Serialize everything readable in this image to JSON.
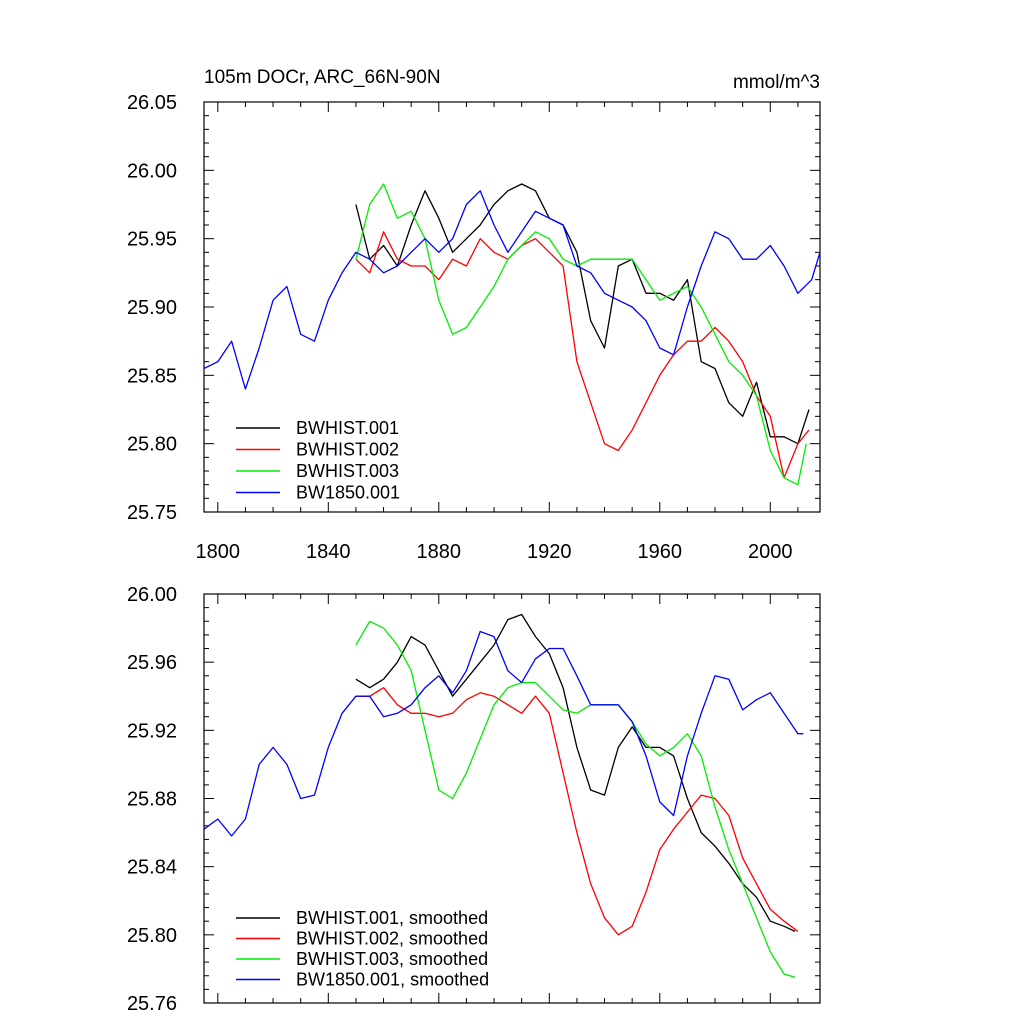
{
  "chart_data": [
    {
      "type": "line",
      "title": "105m DOCr, ARC_66N-90N",
      "units": "mmol/m^3",
      "xlabel": "",
      "ylabel": "",
      "xlim": [
        1795,
        2018
      ],
      "ylim": [
        25.75,
        26.05
      ],
      "x_ticks": [
        1800,
        1840,
        1880,
        1920,
        1960,
        2000
      ],
      "x_tick_labels": [
        "1800",
        "1840",
        "1880",
        "1920",
        "1960",
        "2000"
      ],
      "y_ticks": [
        25.75,
        25.8,
        25.85,
        25.9,
        25.95,
        26.0,
        26.05
      ],
      "y_tick_labels": [
        "25.75",
        "25.80",
        "25.85",
        "25.90",
        "25.95",
        "26.00",
        "26.05"
      ],
      "legend_position": "bottom-left",
      "series": [
        {
          "name": "BWHIST.001",
          "color": "#000000",
          "x": [
            1850,
            1855,
            1860,
            1865,
            1870,
            1875,
            1880,
            1885,
            1890,
            1895,
            1900,
            1905,
            1910,
            1915,
            1920,
            1925,
            1930,
            1935,
            1940,
            1945,
            1950,
            1955,
            1960,
            1965,
            1970,
            1975,
            1980,
            1985,
            1990,
            1995,
            2000,
            2005,
            2010,
            2014
          ],
          "values": [
            25.975,
            25.935,
            25.945,
            25.93,
            25.96,
            25.985,
            25.965,
            25.94,
            25.95,
            25.96,
            25.975,
            25.985,
            25.99,
            25.985,
            25.965,
            25.96,
            25.94,
            25.89,
            25.87,
            25.93,
            25.935,
            25.91,
            25.91,
            25.905,
            25.92,
            25.86,
            25.855,
            25.83,
            25.82,
            25.845,
            25.805,
            25.805,
            25.8,
            25.825
          ]
        },
        {
          "name": "BWHIST.002",
          "color": "#ff0000",
          "x": [
            1850,
            1855,
            1860,
            1865,
            1870,
            1875,
            1880,
            1885,
            1890,
            1895,
            1900,
            1905,
            1910,
            1915,
            1920,
            1925,
            1930,
            1935,
            1940,
            1945,
            1950,
            1955,
            1960,
            1965,
            1970,
            1975,
            1980,
            1985,
            1990,
            1995,
            2000,
            2005,
            2010,
            2014
          ],
          "values": [
            25.935,
            25.925,
            25.955,
            25.935,
            25.93,
            25.93,
            25.92,
            25.935,
            25.93,
            25.95,
            25.94,
            25.935,
            25.945,
            25.95,
            25.94,
            25.93,
            25.86,
            25.83,
            25.8,
            25.795,
            25.81,
            25.83,
            25.85,
            25.865,
            25.875,
            25.875,
            25.885,
            25.875,
            25.86,
            25.835,
            25.82,
            25.775,
            25.8,
            25.81
          ]
        },
        {
          "name": "BWHIST.003",
          "color": "#00ee00",
          "x": [
            1850,
            1855,
            1860,
            1865,
            1870,
            1875,
            1880,
            1885,
            1890,
            1895,
            1900,
            1905,
            1910,
            1915,
            1920,
            1925,
            1930,
            1935,
            1940,
            1945,
            1950,
            1955,
            1960,
            1965,
            1970,
            1975,
            1980,
            1985,
            1990,
            1995,
            2000,
            2005,
            2010,
            2013
          ],
          "values": [
            25.935,
            25.975,
            25.99,
            25.965,
            25.97,
            25.95,
            25.905,
            25.88,
            25.885,
            25.9,
            25.915,
            25.935,
            25.945,
            25.955,
            25.95,
            25.935,
            25.93,
            25.935,
            25.935,
            25.935,
            25.935,
            25.92,
            25.905,
            25.91,
            25.915,
            25.9,
            25.88,
            25.86,
            25.85,
            25.835,
            25.795,
            25.775,
            25.77,
            25.8
          ]
        },
        {
          "name": "BW1850.001",
          "color": "#0000ff",
          "x": [
            1795,
            1800,
            1805,
            1810,
            1815,
            1820,
            1825,
            1830,
            1835,
            1840,
            1845,
            1850,
            1855,
            1860,
            1865,
            1870,
            1875,
            1880,
            1885,
            1890,
            1895,
            1900,
            1905,
            1910,
            1915,
            1920,
            1925,
            1930,
            1935,
            1940,
            1945,
            1950,
            1955,
            1960,
            1965,
            1970,
            1975,
            1980,
            1985,
            1990,
            1995,
            2000,
            2005,
            2010,
            2015,
            2018
          ],
          "values": [
            25.855,
            25.86,
            25.875,
            25.84,
            25.87,
            25.905,
            25.915,
            25.88,
            25.875,
            25.905,
            25.925,
            25.94,
            25.935,
            25.925,
            25.93,
            25.94,
            25.95,
            25.94,
            25.95,
            25.975,
            25.985,
            25.96,
            25.94,
            25.955,
            25.97,
            25.965,
            25.96,
            25.93,
            25.925,
            25.91,
            25.905,
            25.9,
            25.89,
            25.87,
            25.865,
            25.9,
            25.93,
            25.955,
            25.95,
            25.935,
            25.935,
            25.945,
            25.93,
            25.91,
            25.92,
            25.94
          ]
        }
      ]
    },
    {
      "type": "line",
      "title": "",
      "xlabel": "",
      "ylabel": "",
      "xlim": [
        1795,
        2018
      ],
      "ylim": [
        25.76,
        26.0
      ],
      "x_ticks": [
        1800,
        1840,
        1880,
        1920,
        1960,
        2000
      ],
      "y_ticks": [
        25.76,
        25.8,
        25.84,
        25.88,
        25.92,
        25.96,
        26.0
      ],
      "y_tick_labels": [
        "25.76",
        "25.80",
        "25.84",
        "25.88",
        "25.92",
        "25.96",
        "26.00"
      ],
      "legend_position": "bottom-left",
      "series": [
        {
          "name": "BWHIST.001, smoothed",
          "color": "#000000",
          "x": [
            1850,
            1855,
            1860,
            1865,
            1870,
            1875,
            1880,
            1885,
            1890,
            1895,
            1900,
            1905,
            1910,
            1915,
            1920,
            1925,
            1930,
            1935,
            1940,
            1945,
            1950,
            1955,
            1960,
            1965,
            1970,
            1975,
            1980,
            1985,
            1990,
            1995,
            2000,
            2005,
            2009
          ],
          "values": [
            25.95,
            25.945,
            25.95,
            25.96,
            25.975,
            25.97,
            25.955,
            25.94,
            25.95,
            25.96,
            25.97,
            25.985,
            25.988,
            25.975,
            25.965,
            25.945,
            25.91,
            25.885,
            25.882,
            25.91,
            25.922,
            25.91,
            25.91,
            25.905,
            25.88,
            25.86,
            25.852,
            25.842,
            25.83,
            25.822,
            25.808,
            25.805,
            25.802
          ]
        },
        {
          "name": "BWHIST.002, smoothed",
          "color": "#ff0000",
          "x": [
            1850,
            1855,
            1860,
            1865,
            1870,
            1875,
            1880,
            1885,
            1890,
            1895,
            1900,
            1905,
            1910,
            1915,
            1920,
            1925,
            1930,
            1935,
            1940,
            1945,
            1950,
            1955,
            1960,
            1965,
            1970,
            1975,
            1980,
            1985,
            1990,
            1995,
            2000,
            2005,
            2010
          ],
          "values": [
            25.94,
            25.94,
            25.945,
            25.935,
            25.93,
            25.93,
            25.928,
            25.93,
            25.938,
            25.942,
            25.94,
            25.935,
            25.93,
            25.94,
            25.93,
            25.895,
            25.86,
            25.83,
            25.81,
            25.8,
            25.805,
            25.825,
            25.85,
            25.862,
            25.872,
            25.882,
            25.88,
            25.87,
            25.845,
            25.83,
            25.815,
            25.808,
            25.802
          ]
        },
        {
          "name": "BWHIST.003, smoothed",
          "color": "#00ee00",
          "x": [
            1850,
            1855,
            1860,
            1865,
            1870,
            1875,
            1880,
            1885,
            1890,
            1895,
            1900,
            1905,
            1910,
            1915,
            1920,
            1925,
            1930,
            1935,
            1940,
            1945,
            1950,
            1955,
            1960,
            1965,
            1970,
            1975,
            1980,
            1985,
            1990,
            1995,
            2000,
            2005,
            2009
          ],
          "values": [
            25.97,
            25.984,
            25.98,
            25.97,
            25.955,
            25.92,
            25.885,
            25.88,
            25.895,
            25.915,
            25.935,
            25.945,
            25.948,
            25.948,
            25.94,
            25.932,
            25.93,
            25.935,
            25.935,
            25.935,
            25.925,
            25.912,
            25.905,
            25.91,
            25.918,
            25.905,
            25.875,
            25.85,
            25.83,
            25.81,
            25.79,
            25.777,
            25.775
          ]
        },
        {
          "name": "BW1850.001, smoothed",
          "color": "#0000ff",
          "x": [
            1795,
            1800,
            1805,
            1810,
            1815,
            1820,
            1825,
            1830,
            1835,
            1840,
            1845,
            1850,
            1855,
            1860,
            1865,
            1870,
            1875,
            1880,
            1885,
            1890,
            1895,
            1900,
            1905,
            1910,
            1915,
            1920,
            1925,
            1930,
            1935,
            1940,
            1945,
            1950,
            1955,
            1960,
            1965,
            1970,
            1975,
            1980,
            1985,
            1990,
            1995,
            2000,
            2005,
            2010,
            2012
          ],
          "values": [
            25.862,
            25.868,
            25.858,
            25.868,
            25.9,
            25.91,
            25.9,
            25.88,
            25.882,
            25.91,
            25.93,
            25.94,
            25.94,
            25.928,
            25.93,
            25.935,
            25.945,
            25.952,
            25.942,
            25.955,
            25.978,
            25.975,
            25.955,
            25.948,
            25.962,
            25.968,
            25.968,
            25.952,
            25.935,
            25.935,
            25.935,
            25.925,
            25.905,
            25.878,
            25.87,
            25.905,
            25.93,
            25.952,
            25.95,
            25.932,
            25.938,
            25.942,
            25.93,
            25.918,
            25.918
          ]
        }
      ]
    }
  ]
}
